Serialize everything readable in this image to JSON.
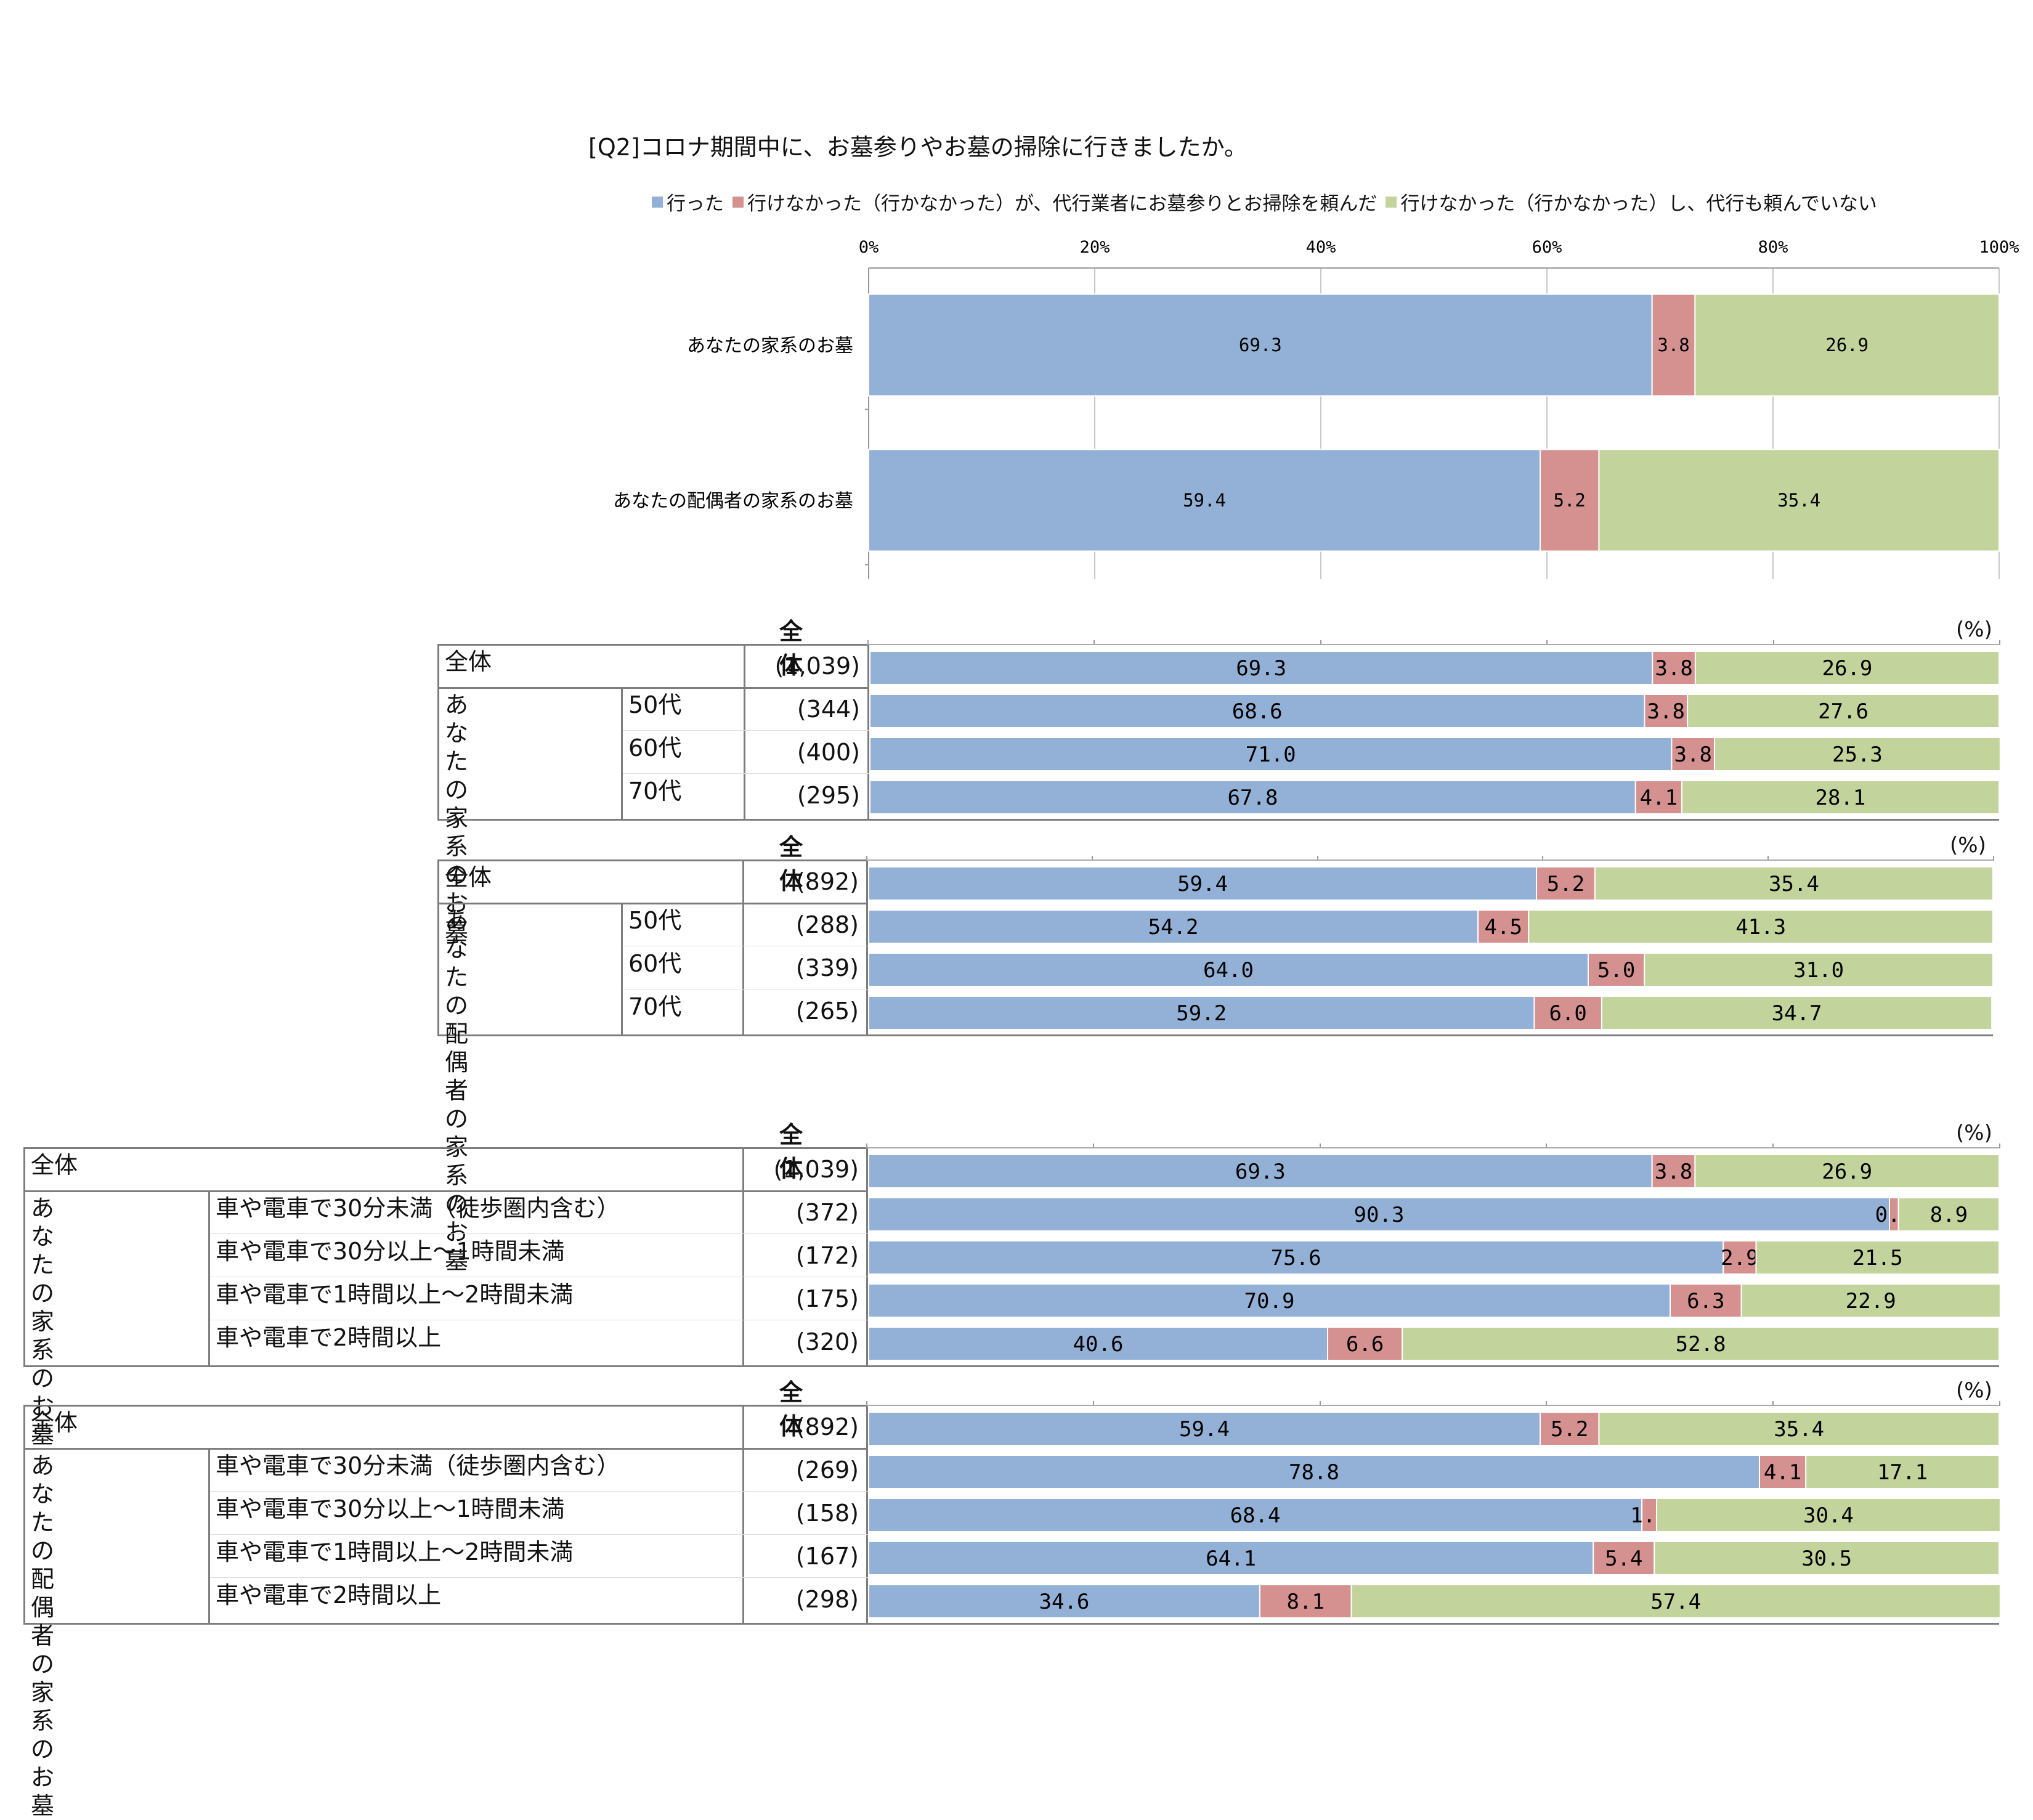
{
  "title": "[Q2]コロナ期間中に、お墓参りやお墓の掃除に行きましたか。",
  "colors": {
    "went": "#93b1d6",
    "proxy": "#d49190",
    "none": "#c3d39c"
  },
  "legend": [
    {
      "label": "行った",
      "color": "#93b1d6"
    },
    {
      "label": "行けなかった（行かなかった）が、代行業者にお墓参りとお掃除を頼んだ",
      "color": "#d49190"
    },
    {
      "label": "行けなかった（行かなかった）し、代行も頼んでいない",
      "color": "#c3d39c"
    }
  ],
  "chart_data": [
    {
      "type": "bar",
      "orientation": "horizontal",
      "stacked": true,
      "xlim": [
        0,
        100
      ],
      "xticks": [
        "0%",
        "20%",
        "40%",
        "60%",
        "80%",
        "100%"
      ],
      "categories": [
        "あなたの家系のお墓",
        "あなたの配偶者の家系のお墓"
      ],
      "series": [
        {
          "name": "行った",
          "values": [
            69.3,
            59.4
          ]
        },
        {
          "name": "行けなかった（行かなかった）が、代行業者にお墓参りとお掃除を頼んだ",
          "values": [
            3.8,
            5.2
          ]
        },
        {
          "name": "行けなかった（行かなかった）し、代行も頼んでいない",
          "values": [
            26.9,
            35.4
          ]
        }
      ]
    },
    {
      "type": "bar",
      "orientation": "horizontal",
      "stacked": true,
      "header": "全体",
      "unit": "(%)",
      "group_label": "あなたの\n家系のお墓",
      "rows": [
        {
          "label": "全体",
          "n": "(1,039)",
          "values": [
            69.3,
            3.8,
            26.9
          ]
        },
        {
          "label": "50代",
          "n": "(344)",
          "values": [
            68.6,
            3.8,
            27.6
          ]
        },
        {
          "label": "60代",
          "n": "(400)",
          "values": [
            71.0,
            3.8,
            25.3
          ]
        },
        {
          "label": "70代",
          "n": "(295)",
          "values": [
            67.8,
            4.1,
            28.1
          ]
        }
      ]
    },
    {
      "type": "bar",
      "orientation": "horizontal",
      "stacked": true,
      "header": "全体",
      "unit": "(%)",
      "group_label": "あなたの配偶\n者の家系のお\n墓",
      "rows": [
        {
          "label": "全体",
          "n": "(892)",
          "values": [
            59.4,
            5.2,
            35.4
          ]
        },
        {
          "label": "50代",
          "n": "(288)",
          "values": [
            54.2,
            4.5,
            41.3
          ]
        },
        {
          "label": "60代",
          "n": "(339)",
          "values": [
            64.0,
            5.0,
            31.0
          ]
        },
        {
          "label": "70代",
          "n": "(265)",
          "values": [
            59.2,
            6.0,
            34.7
          ]
        }
      ]
    },
    {
      "type": "bar",
      "orientation": "horizontal",
      "stacked": true,
      "header": "全体",
      "unit": "(%)",
      "group_label": "あなたの家系\nのお墓",
      "rows": [
        {
          "label": "全体",
          "n": "(1,039)",
          "values": [
            69.3,
            3.8,
            26.9
          ]
        },
        {
          "label": "車や電車で30分未満（徒歩圏内含む）",
          "n": "(372)",
          "values": [
            90.3,
            0.8,
            8.9
          ]
        },
        {
          "label": "車や電車で30分以上～1時間未満",
          "n": "(172)",
          "values": [
            75.6,
            2.9,
            21.5
          ]
        },
        {
          "label": "車や電車で1時間以上～2時間未満",
          "n": "(175)",
          "values": [
            70.9,
            6.3,
            22.9
          ]
        },
        {
          "label": "車や電車で2時間以上",
          "n": "(320)",
          "values": [
            40.6,
            6.6,
            52.8
          ]
        }
      ]
    },
    {
      "type": "bar",
      "orientation": "horizontal",
      "stacked": true,
      "header": "全体",
      "unit": "(%)",
      "group_label": "あなたの配偶\n者の家系のお\n墓",
      "rows": [
        {
          "label": "全体",
          "n": "(892)",
          "values": [
            59.4,
            5.2,
            35.4
          ]
        },
        {
          "label": "車や電車で30分未満（徒歩圏内含む）",
          "n": "(269)",
          "values": [
            78.8,
            4.1,
            17.1
          ]
        },
        {
          "label": "車や電車で30分以上～1時間未満",
          "n": "(158)",
          "values": [
            68.4,
            1.3,
            30.4
          ]
        },
        {
          "label": "車や電車で1時間以上～2時間未満",
          "n": "(167)",
          "values": [
            64.1,
            5.4,
            30.5
          ]
        },
        {
          "label": "車や電車で2時間以上",
          "n": "(298)",
          "values": [
            34.6,
            8.1,
            57.4
          ]
        }
      ]
    }
  ]
}
